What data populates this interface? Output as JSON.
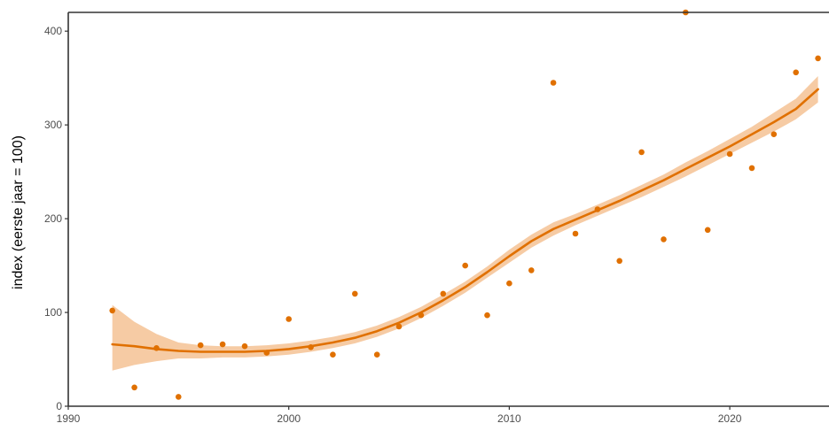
{
  "chart_data": {
    "type": "scatter",
    "title": "",
    "xlabel": "",
    "ylabel": "index (eerste jaar = 100)",
    "xlim": [
      1990,
      2024.5
    ],
    "ylim": [
      0,
      420
    ],
    "x_ticks": [
      1990,
      2000,
      2010,
      2020
    ],
    "x_tick_labels": [
      "1990",
      "2000",
      "2010",
      "2020"
    ],
    "y_ticks": [
      0,
      100,
      200,
      300,
      400
    ],
    "y_tick_labels": [
      "0",
      "100",
      "200",
      "300",
      "400"
    ],
    "grid": false,
    "colors": {
      "points": "#e07000",
      "trend": "#e07000",
      "band": "#f5c294",
      "axis": "#333333"
    },
    "series": [
      {
        "kind": "points",
        "x": [
          1992,
          1993,
          1994,
          1995,
          1996,
          1997,
          1998,
          1999,
          2000,
          2001,
          2002,
          2003,
          2004,
          2005,
          2006,
          2007,
          2008,
          2009,
          2010,
          2011,
          2012,
          2013,
          2014,
          2015,
          2016,
          2017,
          2018,
          2019,
          2020,
          2021,
          2022,
          2023,
          2024
        ],
        "y": [
          102,
          20,
          62,
          10,
          65,
          66,
          64,
          57,
          93,
          63,
          55,
          120,
          55,
          85,
          97,
          120,
          150,
          97,
          131,
          145,
          345,
          184,
          210,
          155,
          271,
          178,
          420,
          188,
          269,
          254,
          290,
          356,
          371
        ]
      },
      {
        "kind": "trend",
        "x": [
          1992,
          1993,
          1994,
          1995,
          1996,
          1997,
          1998,
          1999,
          2000,
          2001,
          2002,
          2003,
          2004,
          2005,
          2006,
          2007,
          2008,
          2009,
          2010,
          2011,
          2012,
          2013,
          2014,
          2015,
          2016,
          2017,
          2018,
          2019,
          2020,
          2021,
          2022,
          2023,
          2024
        ],
        "y": [
          66,
          64,
          61,
          59,
          58,
          58,
          58,
          59,
          61,
          64,
          68,
          73,
          80,
          89,
          100,
          113,
          127,
          143,
          160,
          176,
          189,
          199,
          209,
          219,
          230,
          241,
          253,
          265,
          277,
          290,
          303,
          317,
          338
        ],
        "lower": [
          38,
          44,
          48,
          51,
          51,
          52,
          52,
          53,
          55,
          58,
          62,
          67,
          74,
          83,
          94,
          107,
          121,
          137,
          153,
          169,
          182,
          193,
          203,
          213,
          223,
          234,
          245,
          257,
          269,
          281,
          293,
          306,
          324
        ],
        "upper": [
          108,
          90,
          77,
          68,
          65,
          64,
          64,
          65,
          67,
          70,
          74,
          79,
          86,
          95,
          106,
          119,
          133,
          149,
          167,
          183,
          196,
          205,
          215,
          225,
          236,
          247,
          260,
          272,
          285,
          298,
          313,
          328,
          352
        ]
      }
    ]
  }
}
